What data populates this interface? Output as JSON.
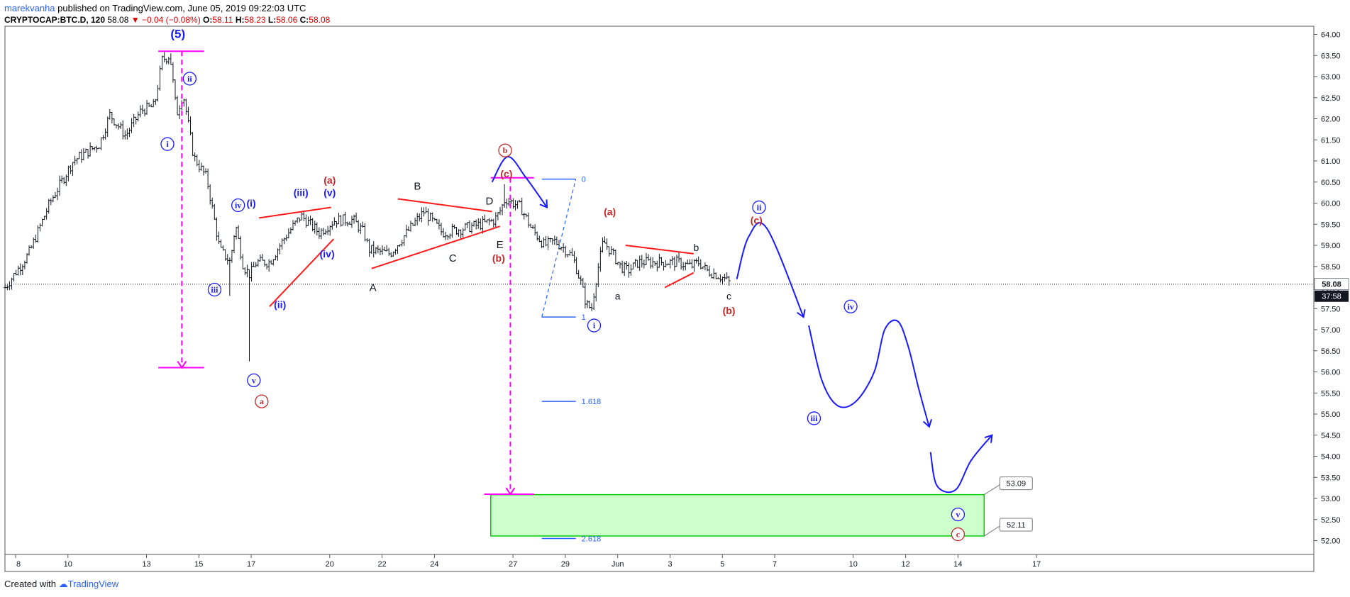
{
  "header": {
    "author": "marekvanha",
    "published_text": "published on TradingView.com, June 05, 2019 09:22:03 UTC",
    "symbol": "CRYPTOCAP:BTC.D, 120",
    "last": "58.08",
    "change": "▼ −0.04 (−0.08%)",
    "o_label": "O:",
    "o_value": "58.11",
    "h_label": "H:",
    "h_value": "58.23",
    "l_label": "L:",
    "l_value": "58.06",
    "c_label": "C:",
    "c_value": "58.08"
  },
  "footer": {
    "created_with": "Created with",
    "brand": "TradingView"
  },
  "colors": {
    "candle": "#131722",
    "wave_blue": "#1a1aff",
    "wave_red": "#c62828",
    "trend_red": "#ff1a1a",
    "magenta": "#ff00ff",
    "fib_blue": "#2962ff",
    "target_fill": "#ccffcc",
    "target_border": "#00cc00"
  },
  "chart_data": {
    "type": "candlestick",
    "title": "",
    "ylim": [
      51.9,
      64.25
    ],
    "y_ticks": [
      "64.00",
      "63.50",
      "63.00",
      "62.50",
      "62.00",
      "61.50",
      "61.00",
      "60.50",
      "60.00",
      "59.50",
      "59.00",
      "58.50",
      "58.00",
      "57.50",
      "57.00",
      "56.50",
      "56.00",
      "55.50",
      "55.00",
      "54.50",
      "54.00",
      "53.50",
      "53.00",
      "52.50",
      "52.00"
    ],
    "x_ticks": [
      {
        "label": "8",
        "d": 8
      },
      {
        "label": "10",
        "d": 10
      },
      {
        "label": "13",
        "d": 13
      },
      {
        "label": "15",
        "d": 15
      },
      {
        "label": "17",
        "d": 17
      },
      {
        "label": "20",
        "d": 20
      },
      {
        "label": "22",
        "d": 22
      },
      {
        "label": "24",
        "d": 24
      },
      {
        "label": "27",
        "d": 27
      },
      {
        "label": "29",
        "d": 29
      },
      {
        "label": "Jun",
        "d": 31
      },
      {
        "label": "3",
        "d": 33
      },
      {
        "label": "5",
        "d": 35
      },
      {
        "label": "7",
        "d": 37
      },
      {
        "label": "10",
        "d": 40
      },
      {
        "label": "12",
        "d": 42
      },
      {
        "label": "14",
        "d": 44
      },
      {
        "label": "17",
        "d": 47
      }
    ],
    "last_price_label": "58.08",
    "countdown_label": "37:58",
    "path_points": [
      [
        7.6,
        58.0
      ],
      [
        8.5,
        58.8
      ],
      [
        9.3,
        60.0
      ],
      [
        10.2,
        61.0
      ],
      [
        11.2,
        61.4
      ],
      [
        11.6,
        62.1
      ],
      [
        12.2,
        61.6
      ],
      [
        12.8,
        62.2
      ],
      [
        13.3,
        62.3
      ],
      [
        13.6,
        63.4
      ],
      [
        13.9,
        63.5
      ],
      [
        14.15,
        62.1
      ],
      [
        14.4,
        62.6
      ],
      [
        14.8,
        61.1
      ],
      [
        15.3,
        60.6
      ],
      [
        15.8,
        58.9
      ],
      [
        16.2,
        58.6
      ],
      [
        16.4,
        59.5
      ],
      [
        16.7,
        58.5
      ],
      [
        16.95,
        58.3
      ],
      [
        17.2,
        58.6
      ],
      [
        17.7,
        58.6
      ],
      [
        18.3,
        59.2
      ],
      [
        18.9,
        59.7
      ],
      [
        19.6,
        59.3
      ],
      [
        20.2,
        59.6
      ],
      [
        20.9,
        59.6
      ],
      [
        21.3,
        59.3
      ],
      [
        21.5,
        58.9
      ],
      [
        22.3,
        58.8
      ],
      [
        23.2,
        59.5
      ],
      [
        23.6,
        59.8
      ],
      [
        24.3,
        59.3
      ],
      [
        25.1,
        59.4
      ],
      [
        25.8,
        59.5
      ],
      [
        26.3,
        59.6
      ],
      [
        26.5,
        59.8
      ],
      [
        26.7,
        60.1
      ],
      [
        27.3,
        59.9
      ],
      [
        27.7,
        59.4
      ],
      [
        28.2,
        59.0
      ],
      [
        28.6,
        59.1
      ],
      [
        29.0,
        58.9
      ],
      [
        29.3,
        58.7
      ],
      [
        29.6,
        58.1
      ],
      [
        29.8,
        57.6
      ],
      [
        30.0,
        57.5
      ],
      [
        30.2,
        58.3
      ],
      [
        30.45,
        59.1
      ],
      [
        30.8,
        58.8
      ],
      [
        31.1,
        58.5
      ],
      [
        31.4,
        58.4
      ],
      [
        31.8,
        58.6
      ],
      [
        32.5,
        58.6
      ],
      [
        33.3,
        58.6
      ],
      [
        33.8,
        58.5
      ],
      [
        34.1,
        58.6
      ],
      [
        34.4,
        58.4
      ],
      [
        34.8,
        58.3
      ],
      [
        35.1,
        58.2
      ],
      [
        35.3,
        58.1
      ]
    ],
    "trendlines": [
      {
        "c": "trend_red",
        "p": [
          [
            17.3,
            59.65
          ],
          [
            20.05,
            59.9
          ]
        ]
      },
      {
        "c": "trend_red",
        "p": [
          [
            17.7,
            57.55
          ],
          [
            20.15,
            59.15
          ]
        ]
      },
      {
        "c": "trend_red",
        "p": [
          [
            21.6,
            58.45
          ],
          [
            26.5,
            59.45
          ]
        ]
      },
      {
        "c": "trend_red",
        "p": [
          [
            22.6,
            60.1
          ],
          [
            26.2,
            59.8
          ]
        ]
      },
      {
        "c": "trend_red",
        "p": [
          [
            31.3,
            59.0
          ],
          [
            33.9,
            58.8
          ]
        ]
      },
      {
        "c": "trend_red",
        "p": [
          [
            32.8,
            58.0
          ],
          [
            33.9,
            58.35
          ]
        ]
      },
      {
        "c": "magenta",
        "p": [
          [
            13.45,
            63.6
          ],
          [
            15.2,
            63.6
          ]
        ]
      },
      {
        "c": "magenta",
        "p": [
          [
            13.45,
            56.1
          ],
          [
            15.2,
            56.1
          ]
        ]
      },
      {
        "c": "magenta",
        "p": [
          [
            26.15,
            60.6
          ],
          [
            27.8,
            60.6
          ]
        ]
      },
      {
        "c": "magenta",
        "p": [
          [
            25.9,
            53.1
          ],
          [
            27.8,
            53.1
          ]
        ]
      }
    ],
    "dashed_arrows": [
      {
        "c": "magenta",
        "p": [
          [
            14.35,
            63.6
          ],
          [
            14.35,
            56.1
          ]
        ]
      },
      {
        "c": "magenta",
        "p": [
          [
            26.9,
            60.6
          ],
          [
            26.9,
            53.1
          ]
        ]
      }
    ],
    "fib_levels": [
      {
        "label": "0",
        "x1": 28.1,
        "x2": 29.4,
        "y": 60.57
      },
      {
        "label": "1",
        "x1": 28.1,
        "x2": 29.4,
        "y": 57.3
      },
      {
        "label": "1.618",
        "x1": 28.1,
        "x2": 29.4,
        "y": 55.3
      },
      {
        "label": "2.618",
        "x1": 28.1,
        "x2": 29.4,
        "y": 52.05
      }
    ],
    "fib_diag": [
      [
        28.1,
        57.3
      ],
      [
        29.4,
        60.57
      ]
    ],
    "target_zone": {
      "x1": 26.15,
      "x2": 45.0,
      "y1": 52.11,
      "y2": 53.09
    },
    "price_callouts": [
      {
        "label": "53.09",
        "y": 53.09,
        "x": 45.0
      },
      {
        "label": "52.11",
        "y": 52.11,
        "x": 45.0
      }
    ],
    "blue_curves": [
      [
        [
          26.2,
          60.5
        ],
        [
          26.8,
          61.1
        ],
        [
          27.5,
          60.6
        ],
        [
          28.3,
          59.9
        ]
      ],
      [
        [
          35.55,
          58.2
        ],
        [
          36.0,
          59.2
        ],
        [
          36.7,
          59.4
        ],
        [
          38.1,
          57.3
        ]
      ],
      [
        [
          38.3,
          57.1
        ],
        [
          38.8,
          55.8
        ],
        [
          39.4,
          55.2
        ],
        [
          40.1,
          55.3
        ],
        [
          40.8,
          56.0
        ],
        [
          41.2,
          57.0
        ],
        [
          41.7,
          57.2
        ],
        [
          42.1,
          56.6
        ],
        [
          42.5,
          55.6
        ],
        [
          42.9,
          54.7
        ]
      ],
      [
        [
          42.95,
          54.1
        ],
        [
          43.2,
          53.3
        ],
        [
          43.9,
          53.2
        ],
        [
          44.5,
          53.9
        ],
        [
          45.3,
          54.5
        ]
      ]
    ],
    "wave_labels": [
      {
        "t": "(5)",
        "x": 14.2,
        "y": 64.0,
        "c": "wave_blue",
        "style": "plain",
        "size": 17
      },
      {
        "t": "ii",
        "x": 14.65,
        "y": 62.95,
        "c": "wave_blue",
        "style": "circle"
      },
      {
        "t": "i",
        "x": 13.8,
        "y": 61.4,
        "c": "wave_blue",
        "style": "circle"
      },
      {
        "t": "iv",
        "x": 16.5,
        "y": 59.95,
        "c": "wave_blue",
        "style": "circle"
      },
      {
        "t": "(i)",
        "x": 17.0,
        "y": 60.0,
        "c": "wave_blue",
        "style": "plain"
      },
      {
        "t": "iii",
        "x": 15.6,
        "y": 57.95,
        "c": "wave_blue",
        "style": "circle"
      },
      {
        "t": "v",
        "x": 17.1,
        "y": 55.8,
        "c": "wave_blue",
        "style": "circle"
      },
      {
        "t": "a",
        "x": 17.4,
        "y": 55.3,
        "c": "wave_red",
        "style": "circle"
      },
      {
        "t": "(ii)",
        "x": 18.1,
        "y": 57.6,
        "c": "wave_blue",
        "style": "plain"
      },
      {
        "t": "(iii)",
        "x": 18.9,
        "y": 60.25,
        "c": "wave_blue",
        "style": "plain"
      },
      {
        "t": "(a)",
        "x": 20.0,
        "y": 60.55,
        "c": "wave_red",
        "style": "plain"
      },
      {
        "t": "(v)",
        "x": 20.0,
        "y": 60.25,
        "c": "wave_blue",
        "style": "plain"
      },
      {
        "t": "(iv)",
        "x": 19.9,
        "y": 58.8,
        "c": "wave_blue",
        "style": "plain"
      },
      {
        "t": "A",
        "x": 21.65,
        "y": 58.0,
        "c": "candle",
        "style": "plain",
        "size": 15
      },
      {
        "t": "B",
        "x": 23.35,
        "y": 60.4,
        "c": "candle",
        "style": "plain",
        "size": 15
      },
      {
        "t": "C",
        "x": 24.7,
        "y": 58.7,
        "c": "candle",
        "style": "plain",
        "size": 15
      },
      {
        "t": "D",
        "x": 26.1,
        "y": 60.05,
        "c": "candle",
        "style": "plain",
        "size": 15
      },
      {
        "t": "E",
        "x": 26.5,
        "y": 59.02,
        "c": "candle",
        "style": "plain",
        "size": 15
      },
      {
        "t": "(b)",
        "x": 26.45,
        "y": 58.7,
        "c": "wave_red",
        "style": "plain"
      },
      {
        "t": "b",
        "x": 26.7,
        "y": 61.25,
        "c": "wave_red",
        "style": "circle"
      },
      {
        "t": "(c)",
        "x": 26.75,
        "y": 60.7,
        "c": "wave_red",
        "style": "plain"
      },
      {
        "t": "(a)",
        "x": 30.7,
        "y": 59.8,
        "c": "wave_red",
        "style": "plain"
      },
      {
        "t": "i",
        "x": 30.1,
        "y": 57.1,
        "c": "wave_blue",
        "style": "circle"
      },
      {
        "t": "a",
        "x": 31.0,
        "y": 57.8,
        "c": "candle",
        "style": "plain"
      },
      {
        "t": "b",
        "x": 34.0,
        "y": 58.95,
        "c": "candle",
        "style": "plain"
      },
      {
        "t": "c",
        "x": 35.25,
        "y": 57.8,
        "c": "candle",
        "style": "plain"
      },
      {
        "t": "(b)",
        "x": 35.25,
        "y": 57.45,
        "c": "wave_red",
        "style": "plain"
      },
      {
        "t": "ii",
        "x": 36.4,
        "y": 59.9,
        "c": "wave_blue",
        "style": "circle"
      },
      {
        "t": "(c)",
        "x": 36.3,
        "y": 59.6,
        "c": "wave_red",
        "style": "plain"
      },
      {
        "t": "iv",
        "x": 39.9,
        "y": 57.55,
        "c": "wave_blue",
        "style": "circle"
      },
      {
        "t": "iii",
        "x": 38.5,
        "y": 54.9,
        "c": "wave_blue",
        "style": "circle"
      },
      {
        "t": "v",
        "x": 44.0,
        "y": 52.62,
        "c": "wave_blue",
        "style": "circle"
      },
      {
        "t": "c",
        "x": 44.0,
        "y": 52.15,
        "c": "wave_red",
        "style": "circle"
      }
    ]
  }
}
